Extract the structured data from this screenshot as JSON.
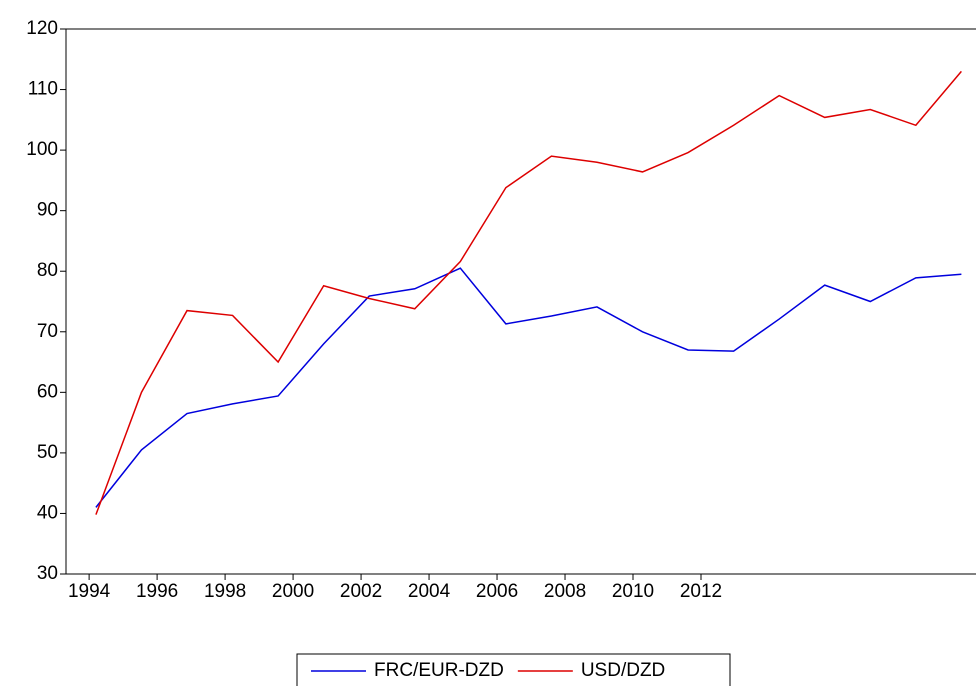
{
  "chart_data": {
    "type": "line",
    "x": [
      1994.2,
      1995.54,
      1996.88,
      1998.22,
      1999.56,
      2000.9,
      2002.24,
      2003.58,
      2004.92,
      2006.26,
      2007.6,
      2008.94,
      2010.28,
      2011.62,
      2012.96,
      2014.3,
      2015.64,
      2016.98,
      2018.32,
      2019.66
    ],
    "series": [
      {
        "name": "FRC/EUR-DZD",
        "color": "#0000dd",
        "values": [
          41,
          50.5,
          56.5,
          58.1,
          59.4,
          68,
          75.9,
          77.1,
          80.5,
          71.3,
          72.6,
          74.1,
          70,
          67,
          66.8,
          72.1,
          77.7,
          75,
          78.9,
          79.5
        ]
      },
      {
        "name": "USD/DZD",
        "color": "#dd0000",
        "values": [
          39.8,
          60,
          73.5,
          72.7,
          65,
          77.6,
          75.5,
          73.8,
          81.6,
          93.8,
          99,
          98,
          96.4,
          99.6,
          104.1,
          109,
          105.4,
          106.7,
          104.1,
          113
        ]
      }
    ],
    "xlim": [
      1993.32,
      2020.09
    ],
    "xticks": [
      1994,
      1996,
      1998,
      2000,
      2002,
      2004,
      2006,
      2008,
      2010,
      2012
    ],
    "ylim": [
      30,
      120
    ],
    "yticks": [
      30,
      40,
      50,
      60,
      70,
      80,
      90,
      100,
      110,
      120
    ],
    "legend": "bottom"
  }
}
